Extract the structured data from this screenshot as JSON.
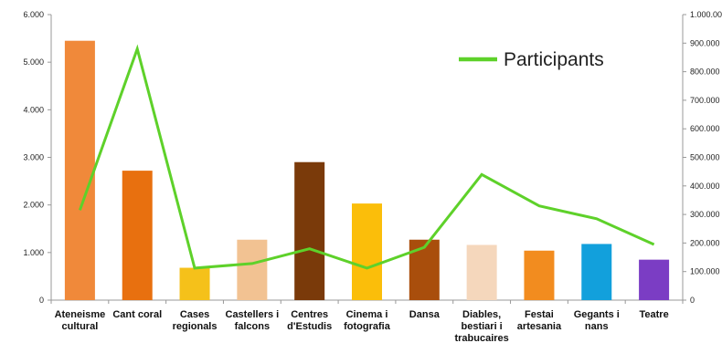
{
  "chart_data": {
    "type": "bar",
    "categories": [
      [
        "Ateneisme",
        "cultural"
      ],
      [
        "Cant coral"
      ],
      [
        "Cases",
        "regionals"
      ],
      [
        "Castellers i",
        "falcons"
      ],
      [
        "Centres",
        "d'Estudis"
      ],
      [
        "Cinema i",
        "fotografia"
      ],
      [
        "Dansa"
      ],
      [
        "Diables,",
        "bestiari i",
        "trabucaires"
      ],
      [
        "Festai",
        "artesania"
      ],
      [
        "Gegants i",
        "nans"
      ],
      [
        "Teatre"
      ]
    ],
    "values": [
      5450,
      2720,
      680,
      1270,
      2900,
      2030,
      1270,
      1160,
      1040,
      1180,
      850
    ],
    "bar_colors": [
      "#F0893A",
      "#E8700F",
      "#F5C11A",
      "#F2C292",
      "#7A3A0A",
      "#FBBE0A",
      "#A94E0C",
      "#F5D7BC",
      "#F28C1F",
      "#12A0DC",
      "#7B3DC4"
    ],
    "ylim": [
      0,
      6000
    ],
    "yticks": [
      "0",
      "1.000",
      "2.000",
      "3.000",
      "4.000",
      "5.000",
      "6.000"
    ],
    "series": [
      {
        "name": "Participants",
        "axis": "right",
        "color": "#5ED12A",
        "values": [
          315000,
          880000,
          112000,
          128000,
          180000,
          112000,
          185000,
          440000,
          330000,
          285000,
          195000
        ]
      }
    ],
    "y2lim": [
      0,
      1000000
    ],
    "y2ticks": [
      "0",
      "100.000",
      "200.000",
      "300.000",
      "400.000",
      "500.000",
      "600.000",
      "700.000",
      "800.000",
      "900.000",
      "1.000.000"
    ],
    "legend": {
      "label": "Participants",
      "position": "top-right"
    },
    "title": "",
    "xlabel": "",
    "ylabel": "",
    "y2label": ""
  }
}
